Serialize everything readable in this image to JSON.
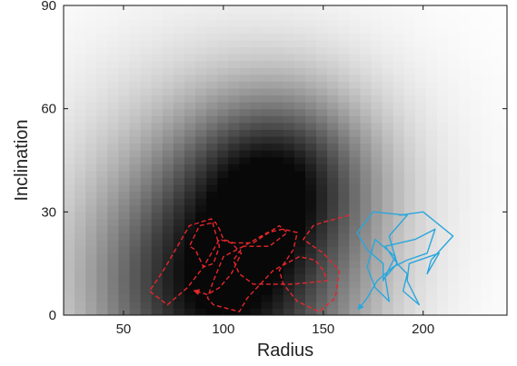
{
  "chart_data": {
    "type": "heatmap",
    "title": "",
    "xlabel": "Radius",
    "ylabel": "Inclination",
    "xlim": [
      20,
      242
    ],
    "ylim": [
      0,
      90
    ],
    "x_ticks": [
      50,
      100,
      150,
      200
    ],
    "y_ticks": [
      0,
      30,
      60,
      90
    ],
    "grid": false,
    "legend": "none",
    "colormap": "grayscale (white = low density, black = high density)",
    "density_peaks": [
      {
        "radius": 100,
        "inclination": 8,
        "weight": 1.0
      },
      {
        "radius": 128,
        "inclination": 40,
        "weight": 0.65
      }
    ],
    "series": [
      {
        "color": "#e8262b",
        "style": "dashed",
        "arrow": "end",
        "points": [
          [
            163,
            29
          ],
          [
            150,
            27
          ],
          [
            145,
            26
          ],
          [
            140,
            22
          ],
          [
            150,
            18
          ],
          [
            158,
            13
          ],
          [
            156,
            5
          ],
          [
            148,
            1
          ],
          [
            137,
            4
          ],
          [
            130,
            9
          ],
          [
            128,
            13
          ],
          [
            135,
            19
          ],
          [
            137,
            24
          ],
          [
            130,
            25
          ],
          [
            122,
            24
          ],
          [
            110,
            20
          ],
          [
            100,
            17
          ],
          [
            95,
            10
          ],
          [
            92,
            5
          ],
          [
            95,
            3
          ],
          [
            108,
            1
          ],
          [
            112,
            5
          ],
          [
            125,
            13
          ],
          [
            138,
            17
          ],
          [
            146,
            16
          ],
          [
            150,
            13
          ],
          [
            152,
            10
          ],
          [
            135,
            9
          ],
          [
            115,
            9
          ],
          [
            108,
            12
          ],
          [
            105,
            16
          ],
          [
            110,
            20
          ],
          [
            123,
            20
          ],
          [
            132,
            24
          ],
          [
            128,
            26
          ],
          [
            115,
            21
          ],
          [
            105,
            21
          ],
          [
            100,
            22
          ],
          [
            98,
            25
          ],
          [
            96,
            27
          ],
          [
            88,
            26
          ],
          [
            83,
            20
          ],
          [
            86,
            19
          ],
          [
            90,
            14
          ],
          [
            82,
            8
          ],
          [
            72,
            3
          ],
          [
            63,
            7
          ],
          [
            70,
            13
          ],
          [
            76,
            19
          ],
          [
            83,
            26
          ],
          [
            94,
            28
          ],
          [
            98,
            20
          ],
          [
            95,
            15
          ],
          [
            90,
            14
          ],
          [
            94,
            18
          ],
          [
            98,
            22
          ],
          [
            104,
            21
          ],
          [
            109,
            18
          ],
          [
            104,
            12
          ],
          [
            98,
            8
          ],
          [
            92,
            6
          ],
          [
            86,
            7
          ]
        ]
      },
      {
        "color": "#29a6dc",
        "style": "solid",
        "arrow": "end",
        "points": [
          [
            188,
            29
          ],
          [
            200,
            30
          ],
          [
            215,
            23
          ],
          [
            204,
            16
          ],
          [
            202,
            12
          ],
          [
            208,
            18
          ],
          [
            193,
            15
          ],
          [
            192,
            10
          ],
          [
            198,
            3
          ],
          [
            190,
            7
          ],
          [
            192,
            12
          ],
          [
            187,
            15
          ],
          [
            183,
            23
          ],
          [
            192,
            29
          ],
          [
            175,
            30
          ],
          [
            167,
            24
          ],
          [
            172,
            19
          ],
          [
            180,
            15
          ],
          [
            180,
            10
          ],
          [
            186,
            17
          ],
          [
            176,
            22
          ],
          [
            172,
            14
          ],
          [
            176,
            8
          ],
          [
            183,
            4
          ],
          [
            181,
            11
          ],
          [
            187,
            15
          ],
          [
            181,
            20
          ],
          [
            196,
            22
          ],
          [
            206,
            25
          ],
          [
            202,
            18
          ],
          [
            192,
            16
          ],
          [
            185,
            14
          ],
          [
            177,
            10
          ],
          [
            172,
            5
          ],
          [
            168,
            2
          ]
        ]
      }
    ]
  }
}
